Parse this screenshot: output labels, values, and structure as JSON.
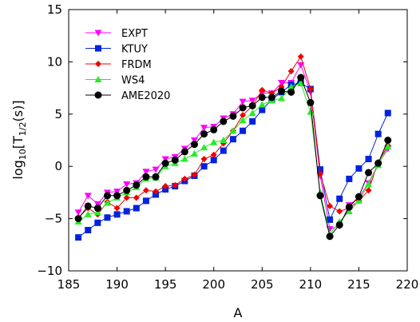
{
  "chart_data": {
    "type": "line",
    "title": "",
    "xlabel": "A",
    "ylabel_main": "log",
    "ylabel_sub": "10",
    "ylabel_bracket": "[T",
    "ylabel_sub2": "1/2",
    "ylabel_tail": "(s)]",
    "xlim": [
      185,
      220
    ],
    "ylim": [
      -10,
      15
    ],
    "xticks": [
      185,
      190,
      195,
      200,
      205,
      210,
      215,
      220
    ],
    "yticks": [
      -10,
      -5,
      0,
      5,
      10,
      15
    ],
    "ytick_labels": [
      "−10",
      "−5",
      "0",
      "5",
      "10",
      "15"
    ],
    "grid": false,
    "legend_position": "top-left",
    "x": [
      186,
      187,
      188,
      189,
      190,
      191,
      192,
      193,
      194,
      195,
      196,
      197,
      198,
      199,
      200,
      201,
      202,
      203,
      204,
      205,
      206,
      207,
      208,
      209,
      210,
      211,
      212,
      213,
      214,
      215,
      216,
      217,
      218
    ],
    "series": [
      {
        "name": "EXPT",
        "color": "#ff00ff",
        "marker": "triangle-down",
        "values": [
          -4.4,
          -2.8,
          -3.6,
          -2.5,
          -2.4,
          -1.7,
          -1.6,
          -0.5,
          -0.3,
          0.7,
          0.9,
          1.7,
          2.5,
          3.7,
          3.8,
          4.6,
          5.0,
          6.2,
          6.3,
          7.0,
          7.0,
          8.0,
          8.0,
          9.7,
          7.1,
          -0.9,
          -6.0,
          -5.7,
          -3.7,
          -3.0,
          -1.6,
          0.2,
          1.7
        ]
      },
      {
        "name": "KTUY",
        "color": "#0022dd",
        "marker": "square",
        "values": [
          -6.8,
          -6.1,
          -5.4,
          -4.9,
          -4.6,
          -4.3,
          -4.0,
          -3.3,
          -2.7,
          -2.2,
          -1.9,
          -1.4,
          -0.9,
          0.0,
          0.6,
          1.5,
          2.6,
          3.4,
          4.3,
          5.4,
          6.4,
          7.1,
          7.8,
          8.0,
          7.4,
          -0.3,
          -5.1,
          -3.1,
          -1.2,
          -0.2,
          0.7,
          3.1,
          5.1
        ]
      },
      {
        "name": "FRDM",
        "color": "#ee0000",
        "marker": "diamond",
        "values": [
          -4.9,
          -4.0,
          -4.6,
          -3.4,
          -4.0,
          -3.0,
          -3.0,
          -2.3,
          -2.4,
          -1.9,
          -1.8,
          -1.2,
          -0.8,
          0.7,
          1.1,
          2.2,
          3.4,
          4.9,
          5.8,
          7.3,
          7.0,
          7.6,
          9.1,
          10.5,
          7.4,
          -0.7,
          -3.8,
          -4.3,
          -4.0,
          -3.3,
          -2.3,
          0.4,
          2.0
        ]
      },
      {
        "name": "WS4",
        "color": "#22ee22",
        "marker": "triangle-up",
        "values": [
          -5.3,
          -4.6,
          -4.4,
          -3.5,
          -3.0,
          -2.5,
          -2.0,
          -1.2,
          -1.1,
          0.0,
          0.3,
          0.7,
          1.2,
          1.8,
          2.3,
          2.5,
          3.4,
          4.4,
          5.1,
          5.9,
          6.3,
          6.5,
          7.6,
          8.0,
          5.2,
          -2.5,
          -6.5,
          -5.3,
          -4.3,
          -3.3,
          -1.7,
          0.1,
          1.9
        ]
      },
      {
        "name": "AME2020",
        "color": "#000000",
        "marker": "circle",
        "values": [
          -5.0,
          -3.8,
          -4.0,
          -2.8,
          -2.8,
          -2.3,
          -1.8,
          -1.0,
          -1.0,
          0.3,
          0.6,
          1.4,
          2.1,
          3.1,
          3.5,
          4.3,
          4.8,
          5.6,
          5.8,
          6.6,
          6.6,
          7.2,
          7.1,
          8.5,
          6.1,
          -2.8,
          -6.7,
          -5.6,
          -3.9,
          -2.9,
          -0.6,
          0.3,
          2.5
        ]
      }
    ]
  }
}
